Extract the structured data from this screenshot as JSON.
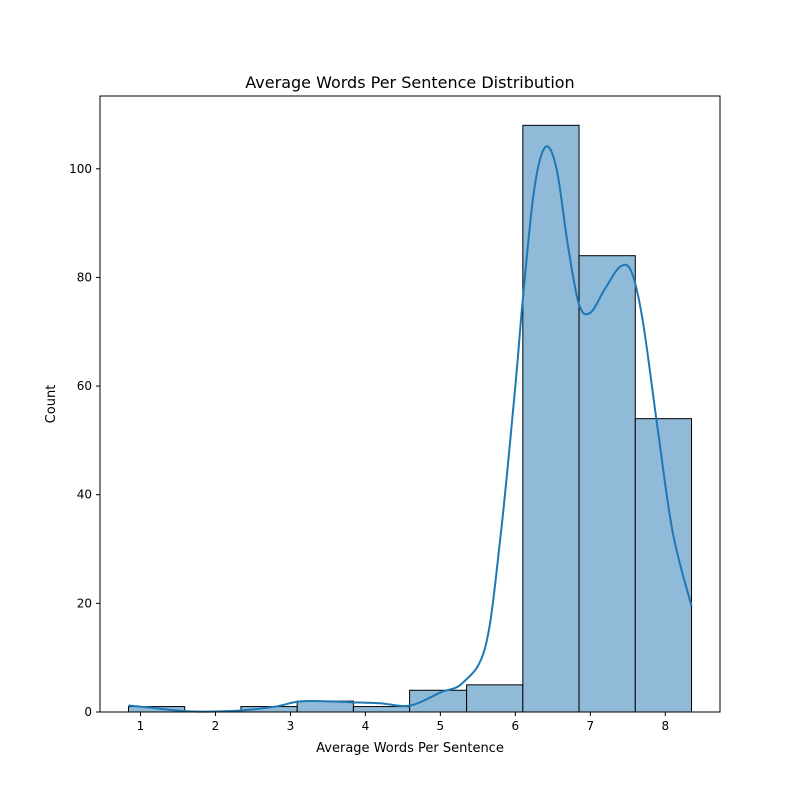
{
  "chart_data": {
    "type": "bar",
    "subtype": "histogram",
    "title": "Average Words Per Sentence Distribution",
    "xlabel": "Average Words Per Sentence",
    "ylabel": "Count",
    "xlim": [
      0.46,
      8.73
    ],
    "ylim": [
      0,
      113.4
    ],
    "xticks": [
      1,
      2,
      3,
      4,
      5,
      6,
      7,
      8
    ],
    "yticks": [
      0,
      20,
      40,
      60,
      80,
      100
    ],
    "bins": [
      {
        "x0": 0.84,
        "x1": 1.59,
        "count": 1
      },
      {
        "x0": 1.59,
        "x1": 2.34,
        "count": 0
      },
      {
        "x0": 2.34,
        "x1": 3.09,
        "count": 1
      },
      {
        "x0": 3.09,
        "x1": 3.84,
        "count": 2
      },
      {
        "x0": 3.84,
        "x1": 4.59,
        "count": 1
      },
      {
        "x0": 4.59,
        "x1": 5.35,
        "count": 4
      },
      {
        "x0": 5.35,
        "x1": 6.1,
        "count": 5
      },
      {
        "x0": 6.1,
        "x1": 6.85,
        "count": 108
      },
      {
        "x0": 6.85,
        "x1": 7.6,
        "count": 84
      },
      {
        "x0": 7.6,
        "x1": 8.35,
        "count": 54
      }
    ],
    "kde": {
      "x": [
        0.84,
        1.2,
        1.6,
        2.0,
        2.4,
        2.8,
        3.1,
        3.4,
        3.8,
        4.2,
        4.6,
        5.0,
        5.3,
        5.6,
        5.8,
        6.0,
        6.1,
        6.25,
        6.4,
        6.55,
        6.7,
        6.85,
        7.0,
        7.2,
        7.4,
        7.55,
        7.7,
        7.9,
        8.1,
        8.35
      ],
      "y": [
        1.2,
        0.7,
        0.15,
        0.1,
        0.35,
        1.0,
        1.9,
        2.0,
        1.8,
        1.6,
        1.2,
        3.6,
        5.4,
        12,
        32,
        60,
        76,
        96,
        104,
        100,
        86,
        75,
        73.5,
        78,
        82,
        81,
        72,
        52,
        33,
        19.5
      ]
    },
    "grid": false,
    "colors": {
      "bar_fill": "#8fbbd9",
      "bar_edge": "#000000",
      "kde_line": "#1f77b4"
    }
  }
}
